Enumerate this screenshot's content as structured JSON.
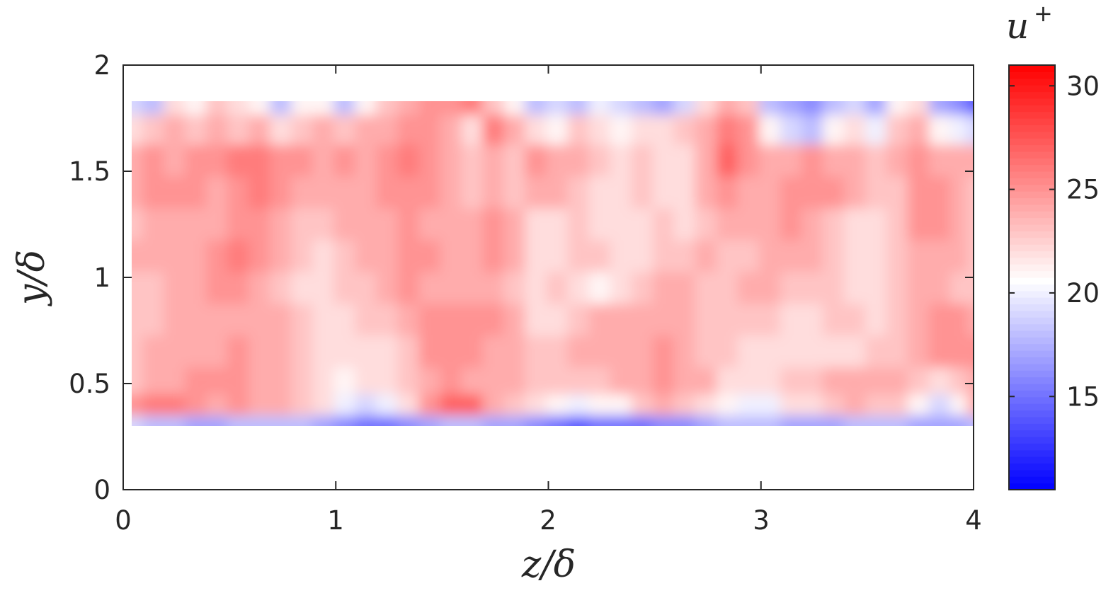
{
  "chart_data": {
    "type": "heatmap",
    "title": "",
    "xlabel": "z/δ",
    "ylabel": "y/δ",
    "xlim": [
      0,
      4
    ],
    "ylim": [
      0,
      2
    ],
    "x_ticks": [
      "0",
      "1",
      "2",
      "3",
      "4"
    ],
    "y_ticks": [
      "0",
      "0.5",
      "1",
      "1.5",
      "2"
    ],
    "grid": false,
    "colorbar": {
      "label": "u",
      "label_superscript": "+",
      "range": [
        10.5,
        31
      ],
      "ticks": [
        "15",
        "20",
        "25",
        "30"
      ],
      "colormap": "blue-white-red",
      "colors": {
        "low": "#0000ff",
        "mid": "#ffffff",
        "high": "#ff0000"
      },
      "center": 20.6
    },
    "field_extent": {
      "z": [
        0.04,
        4.0
      ],
      "y": [
        0.3,
        1.83
      ]
    },
    "z_columns": [
      0.04,
      0.14,
      0.24,
      0.34,
      0.44,
      0.54,
      0.64,
      0.74,
      0.84,
      0.94,
      1.04,
      1.14,
      1.24,
      1.34,
      1.44,
      1.54,
      1.64,
      1.74,
      1.84,
      1.94,
      2.04,
      2.14,
      2.24,
      2.34,
      2.44,
      2.54,
      2.64,
      2.74,
      2.84,
      2.94,
      3.04,
      3.14,
      3.24,
      3.34,
      3.44,
      3.54,
      3.64,
      3.74,
      3.84,
      3.94,
      4.0
    ],
    "y_rows": [
      1.83,
      1.7,
      1.55,
      1.4,
      1.25,
      1.1,
      0.95,
      0.8,
      0.65,
      0.5,
      0.4,
      0.3
    ],
    "u_plus": [
      [
        19,
        18,
        22,
        21,
        23,
        22,
        21,
        18,
        21,
        21,
        18,
        21,
        23,
        24,
        25,
        25,
        26,
        23,
        21,
        18,
        19,
        18,
        20,
        19,
        18,
        17,
        19,
        22,
        24,
        23,
        18,
        17,
        16,
        18,
        19,
        17,
        21,
        22,
        17,
        16,
        14
      ],
      [
        22,
        23,
        24,
        23,
        24,
        23,
        24,
        22,
        23,
        24,
        23,
        24,
        24,
        25,
        25,
        24,
        22,
        26,
        24,
        22,
        21,
        23,
        22,
        21,
        22,
        22,
        23,
        24,
        26,
        25,
        21,
        19,
        18,
        21,
        22,
        20,
        23,
        24,
        21,
        20,
        19
      ],
      [
        24,
        25,
        24,
        25,
        25,
        26,
        26,
        25,
        25,
        24,
        25,
        24,
        25,
        26,
        25,
        24,
        23,
        24,
        23,
        25,
        24,
        24,
        23,
        22,
        23,
        22,
        22,
        24,
        27,
        25,
        24,
        24,
        25,
        24,
        24,
        23,
        24,
        25,
        24,
        24,
        24
      ],
      [
        24,
        25,
        25,
        25,
        24,
        25,
        26,
        25,
        24,
        24,
        24,
        24,
        25,
        25,
        25,
        24,
        23,
        24,
        23,
        24,
        24,
        23,
        22,
        22,
        23,
        22,
        22,
        24,
        25,
        24,
        24,
        25,
        25,
        25,
        24,
        23,
        23,
        25,
        25,
        24,
        23
      ],
      [
        23,
        24,
        24,
        24,
        24,
        25,
        25,
        24,
        23,
        23,
        24,
        24,
        24,
        25,
        24,
        24,
        24,
        25,
        24,
        22,
        22,
        23,
        22,
        22,
        22,
        23,
        22,
        23,
        24,
        24,
        24,
        25,
        24,
        23,
        22,
        22,
        23,
        25,
        25,
        24,
        23
      ],
      [
        24,
        24,
        24,
        24,
        25,
        26,
        25,
        24,
        23,
        22,
        23,
        24,
        24,
        25,
        25,
        24,
        24,
        25,
        24,
        22,
        22,
        23,
        23,
        22,
        22,
        23,
        23,
        24,
        23,
        23,
        24,
        24,
        24,
        23,
        22,
        22,
        23,
        24,
        24,
        24,
        23
      ],
      [
        23,
        23,
        24,
        24,
        25,
        25,
        24,
        23,
        22,
        22,
        23,
        23,
        24,
        25,
        24,
        24,
        24,
        24,
        23,
        22,
        23,
        22,
        21,
        22,
        23,
        24,
        24,
        23,
        23,
        24,
        24,
        23,
        23,
        23,
        22,
        22,
        23,
        24,
        24,
        23,
        23
      ],
      [
        23,
        23,
        24,
        24,
        24,
        24,
        24,
        24,
        23,
        22,
        22,
        23,
        23,
        24,
        25,
        25,
        25,
        25,
        24,
        22,
        22,
        23,
        24,
        24,
        24,
        24,
        24,
        23,
        23,
        23,
        23,
        22,
        22,
        23,
        23,
        22,
        23,
        24,
        25,
        25,
        24
      ],
      [
        23,
        24,
        24,
        24,
        24,
        25,
        24,
        24,
        23,
        22,
        22,
        22,
        22,
        23,
        25,
        25,
        25,
        24,
        24,
        23,
        23,
        24,
        24,
        24,
        24,
        25,
        24,
        23,
        23,
        22,
        22,
        22,
        22,
        22,
        22,
        23,
        23,
        24,
        25,
        25,
        25
      ],
      [
        23,
        24,
        24,
        25,
        25,
        25,
        24,
        24,
        23,
        22,
        21,
        22,
        22,
        23,
        24,
        25,
        24,
        24,
        24,
        23,
        23,
        23,
        23,
        24,
        24,
        25,
        24,
        24,
        22,
        22,
        22,
        23,
        23,
        24,
        24,
        24,
        24,
        23,
        22,
        23,
        24
      ],
      [
        25,
        26,
        26,
        25,
        24,
        25,
        24,
        24,
        23,
        22,
        20,
        19,
        20,
        22,
        25,
        27,
        27,
        24,
        23,
        22,
        21,
        20,
        21,
        21,
        23,
        24,
        23,
        22,
        21,
        20,
        20,
        22,
        22,
        23,
        24,
        23,
        23,
        21,
        19,
        21,
        24
      ],
      [
        19,
        18,
        18,
        17,
        17,
        18,
        18,
        18,
        18,
        17,
        16,
        15,
        15,
        16,
        17,
        18,
        18,
        17,
        17,
        16,
        15,
        14,
        15,
        15,
        15,
        16,
        16,
        17,
        18,
        18,
        18,
        17,
        17,
        17,
        18,
        18,
        18,
        17,
        17,
        17,
        18
      ]
    ]
  }
}
